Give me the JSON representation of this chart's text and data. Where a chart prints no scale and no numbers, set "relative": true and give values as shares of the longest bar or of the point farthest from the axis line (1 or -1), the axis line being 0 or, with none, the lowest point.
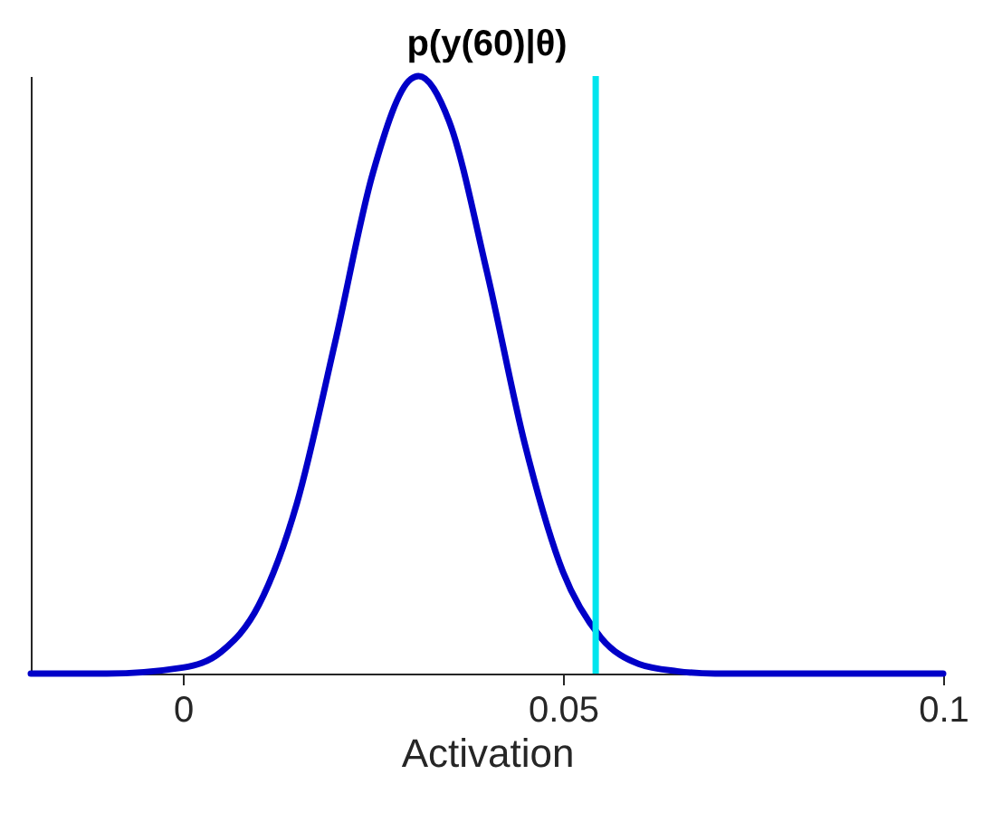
{
  "chart_data": {
    "type": "line",
    "title": "p(y(60)|θ)",
    "xlabel": "Activation",
    "relative": true,
    "tick_labels": "x",
    "grid": false,
    "marker": "none",
    "line_style": "solid",
    "xlim": [
      -0.02,
      0.1
    ],
    "xticks": [
      0,
      0.05,
      0.1
    ],
    "x": [
      -0.02,
      -0.01,
      0,
      0.005,
      0.01,
      0.015,
      0.02,
      0.025,
      0.03,
      0.031,
      0.035,
      0.04,
      0.045,
      0.05,
      0.055,
      0.06,
      0.065,
      0.07,
      0.08,
      0.09,
      0.1
    ],
    "series": [
      {
        "color": "#0000c8",
        "values": [
          0,
          0,
          0.01,
          0.036,
          0.115,
          0.285,
          0.553,
          0.838,
          0.995,
          1,
          0.925,
          0.672,
          0.383,
          0.17,
          0.06,
          0.016,
          0.004,
          0,
          0,
          0,
          0
        ]
      }
    ],
    "ref_lines": [
      {
        "axis": "x",
        "value": 0.0543,
        "color": "#00e5ee"
      }
    ]
  }
}
